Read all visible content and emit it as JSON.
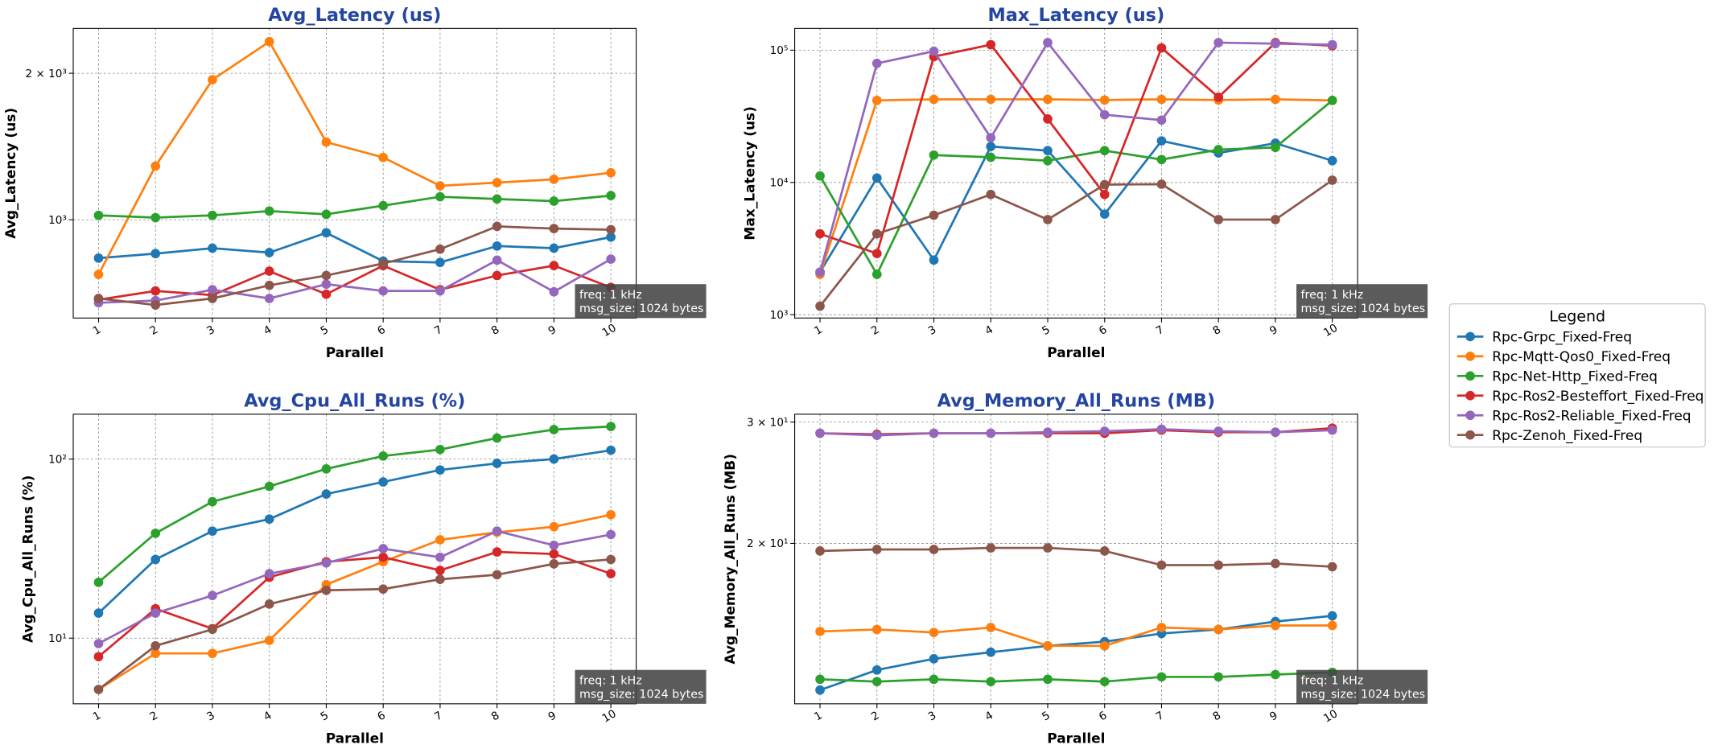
{
  "chart_data": [
    {
      "type": "line",
      "title": "Avg_Latency (us)",
      "xlabel": "Parallel",
      "ylabel": "Avg_Latency (us)",
      "categories": [
        "1",
        "2",
        "3",
        "4",
        "5",
        "6",
        "7",
        "8",
        "9",
        "10"
      ],
      "yscale": "log",
      "ylim": [
        628,
        2473
      ],
      "yticks": [
        {
          "value": 1000,
          "label": "10³"
        },
        {
          "value": 2000,
          "label": "2 × 10³"
        }
      ],
      "grid": true,
      "annotation": [
        "freq: 1 kHz",
        "msg_size: 1024 bytes"
      ],
      "legend": "right",
      "legend_title": "Legend",
      "series": [
        {
          "name": "Rpc-Grpc_Fixed-Freq",
          "color": "#1f77b4",
          "values": [
            834,
            852,
            874,
            856,
            940,
            822,
            817,
            883,
            874,
            921
          ]
        },
        {
          "name": "Rpc-Mqtt-Qos0_Fixed-Freq",
          "color": "#ff7f0e",
          "values": [
            772,
            1289,
            1940,
            2323,
            1444,
            1343,
            1174,
            1192,
            1211,
            1249
          ]
        },
        {
          "name": "Rpc-Net-Http_Fixed-Freq",
          "color": "#2ca02c",
          "values": [
            1021,
            1010,
            1021,
            1042,
            1026,
            1069,
            1115,
            1103,
            1092,
            1121
          ]
        },
        {
          "name": "Rpc-Ros2-Besteffort_Fixed-Freq",
          "color": "#d62728",
          "values": [
            685,
            714,
            700,
            784,
            703,
            805,
            718,
            768,
            805,
            726
          ]
        },
        {
          "name": "Rpc-Ros2-Reliable_Fixed-Freq",
          "color": "#9467bd",
          "values": [
            675,
            682,
            718,
            689,
            737,
            714,
            714,
            826,
            711,
            830
          ]
        },
        {
          "name": "Rpc-Zenoh_Fixed-Freq",
          "color": "#8c564b",
          "values": [
            689,
            668,
            689,
            733,
            768,
            813,
            870,
            969,
            959,
            954
          ]
        }
      ]
    },
    {
      "type": "line",
      "title": "Max_Latency (us)",
      "xlabel": "Parallel",
      "ylabel": "Max_Latency (us)",
      "categories": [
        "1",
        "2",
        "3",
        "4",
        "5",
        "6",
        "7",
        "8",
        "9",
        "10"
      ],
      "yscale": "log",
      "ylim": [
        944,
        146000
      ],
      "yticks": [
        {
          "value": 1000,
          "label": "10³"
        },
        {
          "value": 10000,
          "label": "10⁴"
        },
        {
          "value": 100000,
          "label": "10⁵"
        }
      ],
      "grid": true,
      "annotation": [
        "freq: 1 kHz",
        "msg_size: 1024 bytes"
      ],
      "series": [
        {
          "color": "#1f77b4",
          "values": [
            2100,
            10800,
            2590,
            18700,
            17400,
            5760,
            20600,
            16700,
            19800,
            14600
          ]
        },
        {
          "color": "#ff7f0e",
          "values": [
            2020,
            41700,
            42500,
            42500,
            42500,
            42000,
            42500,
            42000,
            42500,
            41700
          ]
        },
        {
          "color": "#2ca02c",
          "values": [
            11200,
            2020,
            16100,
            15500,
            14600,
            17400,
            14900,
            17700,
            18400,
            41700
          ]
        },
        {
          "color": "#d62728",
          "values": [
            4090,
            2900,
            89300,
            110000,
            30200,
            8110,
            104000,
            44100,
            114000,
            108000
          ]
        },
        {
          "color": "#9467bd",
          "values": [
            2100,
            79500,
            98200,
            21800,
            114000,
            32500,
            29600,
            114000,
            112000,
            110000
          ]
        },
        {
          "color": "#8c564b",
          "values": [
            1160,
            4090,
            5650,
            8110,
            5240,
            9630,
            9700,
            5240,
            5240,
            10400
          ]
        }
      ]
    },
    {
      "type": "line",
      "title": "Avg_Cpu_All_Runs (%)",
      "xlabel": "Parallel",
      "ylabel": "Avg_Cpu_All_Runs (%)",
      "categories": [
        "1",
        "2",
        "3",
        "4",
        "5",
        "6",
        "7",
        "8",
        "9",
        "10"
      ],
      "yscale": "log",
      "ylim": [
        4.3,
        178
      ],
      "yticks": [
        {
          "value": 10,
          "label": "10¹"
        },
        {
          "value": 100,
          "label": "10²"
        }
      ],
      "grid": true,
      "annotation": [
        "freq: 1 kHz",
        "msg_size: 1024 bytes"
      ],
      "series": [
        {
          "color": "#1f77b4",
          "values": [
            13.8,
            27.5,
            39.6,
            46.2,
            63.8,
            74.5,
            86.9,
            94.6,
            100,
            112
          ]
        },
        {
          "color": "#ff7f0e",
          "values": [
            5.17,
            8.22,
            8.22,
            9.72,
            19.9,
            26.7,
            35.4,
            39.0,
            41.9,
            48.9
          ]
        },
        {
          "color": "#2ca02c",
          "values": [
            20.5,
            38.5,
            57.8,
            70.4,
            88.1,
            104,
            113,
            131,
            146,
            152
          ]
        },
        {
          "color": "#d62728",
          "values": [
            7.88,
            14.6,
            11.3,
            21.9,
            26.7,
            28.3,
            23.9,
            30.3,
            29.5,
            22.9
          ]
        },
        {
          "color": "#9467bd",
          "values": [
            9.32,
            13.8,
            17.3,
            22.9,
            26.3,
            31.6,
            28.3,
            39.6,
            33.0,
            37.9
          ]
        },
        {
          "color": "#8c564b",
          "values": [
            5.17,
            9.06,
            11.2,
            15.5,
            18.5,
            18.8,
            21.3,
            22.6,
            26.0,
            27.5
          ]
        }
      ]
    },
    {
      "type": "line",
      "title": "Avg_Memory_All_Runs (MB)",
      "xlabel": "Parallel",
      "ylabel": "Avg_Memory_All_Runs (MB)",
      "categories": [
        "1",
        "2",
        "3",
        "4",
        "5",
        "6",
        "7",
        "8",
        "9",
        "10"
      ],
      "yscale": "log",
      "ylim": [
        11.7,
        30.8
      ],
      "yticks": [
        {
          "value": 20,
          "label": "2 × 10¹"
        },
        {
          "value": 30,
          "label": "3 × 10¹"
        }
      ],
      "grid": true,
      "annotation": [
        "freq: 1 kHz",
        "msg_size: 1024 bytes"
      ],
      "series": [
        {
          "color": "#1f77b4",
          "values": [
            12.25,
            13.1,
            13.6,
            13.9,
            14.2,
            14.4,
            14.8,
            15.0,
            15.4,
            15.7
          ]
        },
        {
          "color": "#ff7f0e",
          "values": [
            14.9,
            15.0,
            14.85,
            15.1,
            14.2,
            14.2,
            15.1,
            15.0,
            15.2,
            15.2
          ]
        },
        {
          "color": "#2ca02c",
          "values": [
            12.7,
            12.6,
            12.7,
            12.6,
            12.7,
            12.6,
            12.8,
            12.8,
            12.9,
            13.0
          ]
        },
        {
          "color": "#d62728",
          "values": [
            28.9,
            28.8,
            28.9,
            28.9,
            28.9,
            28.9,
            29.2,
            29.0,
            29.0,
            29.4
          ]
        },
        {
          "color": "#9467bd",
          "values": [
            28.9,
            28.7,
            28.9,
            28.9,
            29.0,
            29.1,
            29.3,
            29.1,
            29.0,
            29.2
          ]
        },
        {
          "color": "#8c564b",
          "values": [
            19.5,
            19.6,
            19.6,
            19.7,
            19.7,
            19.5,
            18.6,
            18.6,
            18.7,
            18.5
          ]
        }
      ]
    }
  ]
}
